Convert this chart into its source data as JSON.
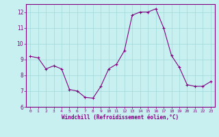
{
  "x": [
    0,
    1,
    2,
    3,
    4,
    5,
    6,
    7,
    8,
    9,
    10,
    11,
    12,
    13,
    14,
    15,
    16,
    17,
    18,
    19,
    20,
    21,
    22,
    23
  ],
  "y": [
    9.2,
    9.1,
    8.4,
    8.6,
    8.4,
    7.1,
    7.0,
    6.6,
    6.55,
    7.3,
    8.4,
    8.7,
    9.55,
    11.8,
    12.0,
    12.0,
    12.2,
    11.0,
    9.25,
    8.5,
    7.4,
    7.3,
    7.3,
    7.6
  ],
  "line_color": "#800080",
  "marker": "+",
  "bg_color": "#c8f0f0",
  "grid_color": "#a0d8d8",
  "xlabel": "Windchill (Refroidissement éolien,°C)",
  "xlabel_color": "#800080",
  "tick_color": "#800080",
  "ylim": [
    6,
    12.5
  ],
  "xlim": [
    -0.5,
    23.5
  ],
  "yticks": [
    6,
    7,
    8,
    9,
    10,
    11,
    12
  ],
  "xticks": [
    0,
    1,
    2,
    3,
    4,
    5,
    6,
    7,
    8,
    9,
    10,
    11,
    12,
    13,
    14,
    15,
    16,
    17,
    18,
    19,
    20,
    21,
    22,
    23
  ],
  "axis_spine_color": "#800080",
  "figsize": [
    3.2,
    2.0
  ],
  "dpi": 100
}
